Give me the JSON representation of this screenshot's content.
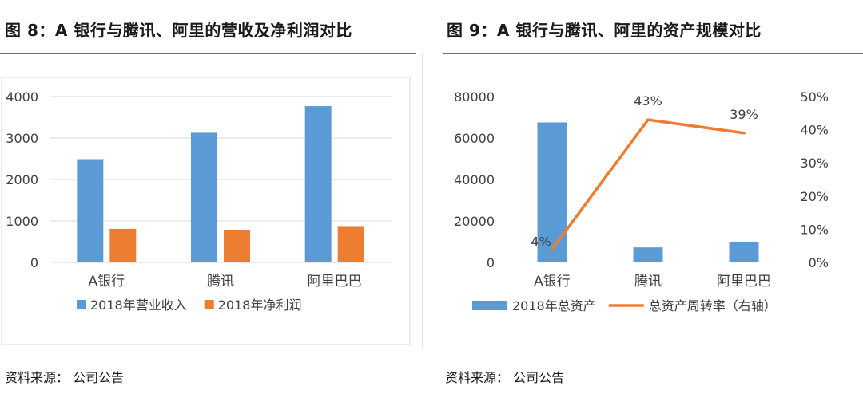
{
  "figures": [
    {
      "title": "图 8：A 银行与腾讯、阿里的营收及净利润对比",
      "source": "资料来源：  公司公告",
      "chart_data": {
        "type": "bar",
        "categories": [
          "A银行",
          "腾讯",
          "阿里巴巴"
        ],
        "series": [
          {
            "name": "2018年营业收入",
            "values": [
              2490,
              3127,
              3768
            ],
            "color": "#5B9BD5"
          },
          {
            "name": "2018年净利润",
            "values": [
              810,
              788,
              876
            ],
            "color": "#ED7D31"
          }
        ],
        "ylim": [
          0,
          4000
        ],
        "yticks": [
          "0",
          "1000",
          "2000",
          "3000",
          "4000"
        ],
        "grid": true,
        "legend": "bottom",
        "title": "",
        "xlabel": "",
        "ylabel": ""
      }
    },
    {
      "title": "图 9：A 银行与腾讯、阿里的资产规模对比",
      "source": "资料来源：  公司公告",
      "chart_data": {
        "type": "bar",
        "categories": [
          "A银行",
          "腾讯",
          "阿里巴巴"
        ],
        "series": [
          {
            "name": "2018年总资产",
            "type": "bar",
            "axis": "left",
            "values": [
              67500,
              7240,
              9660
            ],
            "color": "#5B9BD5"
          },
          {
            "name": "总资产周转率（右轴）",
            "type": "line",
            "axis": "right",
            "values": [
              4,
              43,
              39
            ],
            "labels": [
              "4%",
              "43%",
              "39%"
            ],
            "color": "#ED7D31"
          }
        ],
        "ylim_left": [
          0,
          80000
        ],
        "yticks_left": [
          "0",
          "20000",
          "40000",
          "60000",
          "80000"
        ],
        "ylim_right": [
          0,
          50
        ],
        "yticks_right": [
          "0%",
          "10%",
          "20%",
          "30%",
          "40%",
          "50%"
        ],
        "grid": false,
        "legend": "bottom",
        "title": "",
        "xlabel": "",
        "ylabel": ""
      }
    }
  ]
}
